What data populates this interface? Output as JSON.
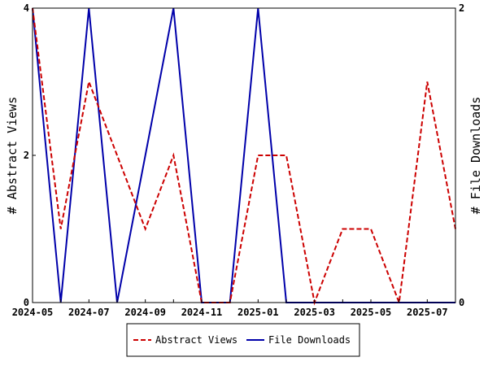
{
  "chart_data": {
    "type": "line",
    "x": [
      "2024-05",
      "2024-06",
      "2024-07",
      "2024-08",
      "2024-09",
      "2024-10",
      "2024-11",
      "2024-12",
      "2025-01",
      "2025-02",
      "2025-03",
      "2025-04",
      "2025-05",
      "2025-06",
      "2025-07",
      "2025-08"
    ],
    "x_tick_labels": [
      "2024-05",
      "2024-07",
      "2024-09",
      "2024-11",
      "2025-01",
      "2025-03",
      "2025-05",
      "2025-07"
    ],
    "ylabel_left": "# Abstract Views",
    "ylabel_right": "# File Downloads",
    "ylim_left": [
      0,
      4
    ],
    "ylim_right": [
      0,
      2
    ],
    "y_ticks_left": [
      "0",
      "2",
      "4"
    ],
    "y_ticks_right": [
      "0",
      "2"
    ],
    "grid": false,
    "legend_position": "bottom-center",
    "series": [
      {
        "name": "Abstract Views",
        "axis": "left",
        "color": "#cc0000",
        "style": "dashed",
        "values": [
          4,
          1,
          3,
          2,
          1,
          2,
          0,
          0,
          2,
          2,
          0,
          1,
          1,
          0,
          3,
          1
        ]
      },
      {
        "name": "File Downloads",
        "axis": "right",
        "color": "#0000aa",
        "style": "solid",
        "values": [
          2,
          0,
          2,
          0,
          1,
          2,
          0,
          0,
          2,
          0,
          0,
          0,
          0,
          0,
          0,
          0
        ]
      }
    ]
  }
}
